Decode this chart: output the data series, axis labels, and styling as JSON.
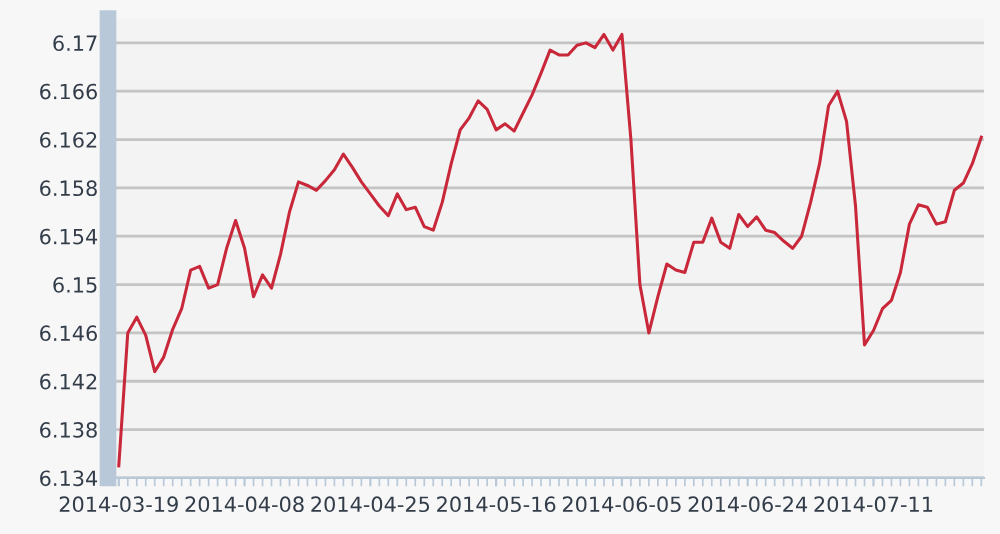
{
  "chart_data": {
    "type": "line",
    "grid": "y",
    "marker": "none",
    "line_style": "solid",
    "categories": [
      "2014-03-19",
      null,
      null,
      null,
      null,
      null,
      null,
      null,
      null,
      null,
      null,
      null,
      null,
      null,
      "2014-04-08",
      null,
      null,
      null,
      null,
      null,
      null,
      null,
      null,
      null,
      null,
      null,
      null,
      null,
      "2014-04-25",
      null,
      null,
      null,
      null,
      null,
      null,
      null,
      null,
      null,
      null,
      null,
      null,
      null,
      "2014-05-16",
      null,
      null,
      null,
      null,
      null,
      null,
      null,
      null,
      null,
      null,
      null,
      null,
      null,
      "2014-06-05",
      null,
      null,
      null,
      null,
      null,
      null,
      null,
      null,
      null,
      null,
      null,
      null,
      null,
      "2014-06-24",
      null,
      null,
      null,
      null,
      null,
      null,
      null,
      null,
      null,
      null,
      null,
      null,
      null,
      "2014-07-11",
      null,
      null,
      null,
      null,
      null,
      null,
      null,
      null,
      null,
      null,
      null,
      null
    ],
    "series": [
      {
        "color": "#c8283a",
        "values": [
          6.135,
          6.146,
          6.1473,
          6.1458,
          6.1428,
          6.144,
          6.1463,
          6.148,
          6.1512,
          6.1515,
          6.1497,
          6.15,
          6.153,
          6.1553,
          6.153,
          6.149,
          6.1508,
          6.1497,
          6.1525,
          6.156,
          6.1585,
          6.1582,
          6.1578,
          6.1586,
          6.1595,
          6.1608,
          6.1597,
          6.1585,
          6.1575,
          6.1565,
          6.1557,
          6.1575,
          6.1562,
          6.1564,
          6.1548,
          6.1545,
          6.1568,
          6.16,
          6.1628,
          6.1638,
          6.1652,
          6.1645,
          6.1628,
          6.1633,
          6.1627,
          6.1642,
          6.1657,
          6.1675,
          6.1694,
          6.169,
          6.169,
          6.1698,
          6.17,
          6.1696,
          6.1707,
          6.1694,
          6.1707,
          6.162,
          6.15,
          6.146,
          6.149,
          6.1517,
          6.1512,
          6.151,
          6.1535,
          6.1535,
          6.1555,
          6.1535,
          6.153,
          6.1558,
          6.1548,
          6.1556,
          6.1545,
          6.1543,
          6.1536,
          6.153,
          6.154,
          6.1568,
          6.16,
          6.1648,
          6.166,
          6.1635,
          6.1565,
          6.145,
          6.1462,
          6.148,
          6.1487,
          6.151,
          6.155,
          6.1566,
          6.1564,
          6.155,
          6.1552,
          6.1578,
          6.1584,
          6.16,
          6.1622
        ]
      }
    ],
    "ylim": [
      6.134,
      6.172
    ],
    "yticks": [
      6.134,
      6.138,
      6.142,
      6.146,
      6.15,
      6.154,
      6.158,
      6.162,
      6.166,
      6.17
    ]
  }
}
